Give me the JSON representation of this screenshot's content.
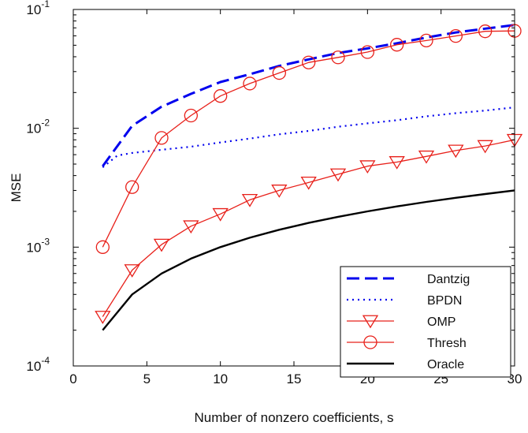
{
  "chart_data": {
    "type": "line",
    "title": "",
    "xlabel": "Number of nonzero coefficients, s",
    "ylabel": "MSE",
    "xlim": [
      0,
      30
    ],
    "ylim": [
      0.0001,
      0.1
    ],
    "yscale": "log",
    "grid": false,
    "legend_position": "bottom-right",
    "x_ticks": [
      0,
      5,
      10,
      15,
      20,
      25,
      30
    ],
    "y_ticks": [
      {
        "value": 0.0001,
        "base": "10",
        "exp": "-4"
      },
      {
        "value": 0.001,
        "base": "10",
        "exp": "-3"
      },
      {
        "value": 0.01,
        "base": "10",
        "exp": "-2"
      },
      {
        "value": 0.1,
        "base": "10",
        "exp": "-1"
      }
    ],
    "series": [
      {
        "name": "Dantzig",
        "color": "#0000ee",
        "style": "dashed",
        "marker": "none",
        "x": [
          2,
          4,
          6,
          8,
          10,
          12,
          14,
          16,
          18,
          20,
          22,
          24,
          26,
          28,
          30
        ],
        "values": [
          0.0048,
          0.0105,
          0.0152,
          0.0195,
          0.0245,
          0.0285,
          0.0335,
          0.038,
          0.043,
          0.047,
          0.052,
          0.058,
          0.064,
          0.069,
          0.074
        ]
      },
      {
        "name": "BPDN",
        "color": "#0000ee",
        "style": "dotted",
        "marker": "none",
        "x": [
          2,
          3,
          4,
          6,
          8,
          10,
          12,
          14,
          16,
          18,
          20,
          22,
          24,
          26,
          28,
          30
        ],
        "values": [
          0.0047,
          0.0059,
          0.0062,
          0.0066,
          0.007,
          0.0076,
          0.0082,
          0.0089,
          0.0095,
          0.0103,
          0.011,
          0.0117,
          0.0126,
          0.0134,
          0.0141,
          0.015
        ]
      },
      {
        "name": "OMP",
        "color": "#e8201a",
        "style": "solid",
        "marker": "triangle-down",
        "x": [
          2,
          4,
          6,
          8,
          10,
          12,
          14,
          16,
          18,
          20,
          22,
          24,
          26,
          28,
          30
        ],
        "values": [
          0.00026,
          0.00064,
          0.00105,
          0.0015,
          0.0019,
          0.0025,
          0.003,
          0.0035,
          0.0041,
          0.0048,
          0.0052,
          0.0058,
          0.0065,
          0.0071,
          0.008
        ]
      },
      {
        "name": "Thresh",
        "color": "#e8201a",
        "style": "solid",
        "marker": "circle",
        "x": [
          2,
          4,
          6,
          8,
          10,
          12,
          14,
          16,
          18,
          20,
          22,
          24,
          26,
          28,
          30
        ],
        "values": [
          0.001,
          0.0032,
          0.0083,
          0.0128,
          0.0187,
          0.0238,
          0.0292,
          0.0358,
          0.0395,
          0.0438,
          0.0505,
          0.0548,
          0.0598,
          0.0655,
          0.066
        ]
      },
      {
        "name": "Oracle",
        "color": "#000000",
        "style": "solid",
        "marker": "none",
        "x": [
          2,
          4,
          6,
          8,
          10,
          12,
          14,
          16,
          18,
          20,
          22,
          24,
          26,
          28,
          30
        ],
        "values": [
          0.0002,
          0.0004,
          0.0006,
          0.0008,
          0.001,
          0.0012,
          0.0014,
          0.0016,
          0.0018,
          0.002,
          0.0022,
          0.0024,
          0.0026,
          0.0028,
          0.003
        ]
      }
    ]
  }
}
